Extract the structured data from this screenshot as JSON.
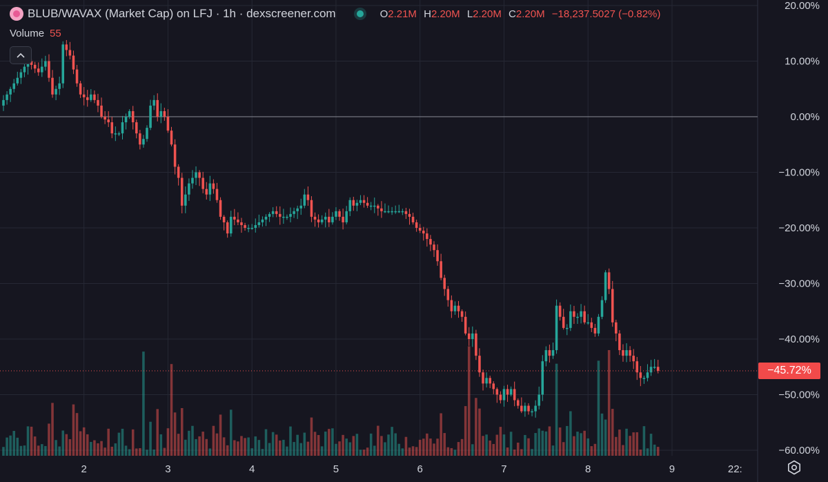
{
  "header": {
    "title": "BLUB/WAVAX (Market Cap) on LFJ · 1h · dexscreener.com",
    "ohlc": [
      {
        "k": "O",
        "v": "2.21M"
      },
      {
        "k": "H",
        "v": "2.20M"
      },
      {
        "k": "L",
        "v": "2.20M"
      },
      {
        "k": "C",
        "v": "2.20M"
      }
    ],
    "change": "−18,237.5027 (−0.82%)"
  },
  "volume_legend": {
    "label": "Volume",
    "value": "55"
  },
  "last_value_label": "−45.72%",
  "colors": {
    "up": "#26a69a",
    "down": "#ef5350",
    "background": "#161620",
    "grid": "#262834",
    "text": "#d1d4dc",
    "baseline": "#8a8c96",
    "last_line": "#ef5350"
  },
  "icons": {
    "logo": "blub-token-logo",
    "status": "live-dot-icon",
    "collapse": "chevron-up-icon",
    "settings": "gear-icon"
  },
  "chart_data": {
    "type": "candlestick",
    "y_axis": {
      "unit": "percent",
      "range": [
        -61,
        21
      ],
      "ticks": [
        20,
        10,
        0,
        -10,
        -20,
        -30,
        -40,
        -50,
        -60
      ],
      "tick_labels": [
        "20.00%",
        "10.00%",
        "0.00%",
        "−10.00%",
        "−20.00%",
        "−30.00%",
        "−40.00%",
        "−50.00%",
        "−60.00%"
      ],
      "baseline": 0,
      "last_value": -45.72
    },
    "x_axis": {
      "day_ticks": [
        {
          "label": "2",
          "hours": 0
        },
        {
          "label": "3",
          "hours": 24
        },
        {
          "label": "4",
          "hours": 48
        },
        {
          "label": "5",
          "hours": 72
        },
        {
          "label": "6",
          "hours": 96
        },
        {
          "label": "7",
          "hours": 120
        },
        {
          "label": "8",
          "hours": 144
        },
        {
          "label": "9",
          "hours": 168
        },
        {
          "label": "22:",
          "hours": 186
        }
      ],
      "range_hours": [
        -23,
        182
      ]
    },
    "close_path": [
      [
        -23,
        3
      ],
      [
        -19,
        7
      ],
      [
        -16,
        10
      ],
      [
        -13,
        8
      ],
      [
        -11,
        10
      ],
      [
        -9,
        4
      ],
      [
        -7,
        6
      ],
      [
        -6,
        13
      ],
      [
        -4,
        11
      ],
      [
        -2,
        6
      ],
      [
        -1,
        4
      ],
      [
        1,
        3
      ],
      [
        2,
        4
      ],
      [
        4,
        2
      ],
      [
        5,
        0
      ],
      [
        7,
        -1
      ],
      [
        8,
        -3
      ],
      [
        10,
        -3
      ],
      [
        11,
        -1
      ],
      [
        13,
        1
      ],
      [
        14,
        -1
      ],
      [
        16,
        -5
      ],
      [
        17,
        -4
      ],
      [
        18,
        -2
      ],
      [
        19,
        2
      ],
      [
        20,
        3
      ],
      [
        21,
        0
      ],
      [
        22,
        1
      ],
      [
        23,
        0
      ],
      [
        25,
        -5
      ],
      [
        26,
        -9
      ],
      [
        27,
        -11
      ],
      [
        28,
        -16
      ],
      [
        29,
        -14
      ],
      [
        30,
        -12
      ],
      [
        31,
        -11
      ],
      [
        32,
        -10
      ],
      [
        33,
        -11
      ],
      [
        34,
        -13
      ],
      [
        35,
        -14
      ],
      [
        36,
        -12
      ],
      [
        37,
        -13
      ],
      [
        38,
        -15
      ],
      [
        39,
        -18
      ],
      [
        40,
        -19
      ],
      [
        41,
        -21
      ],
      [
        42,
        -18
      ],
      [
        44,
        -19
      ],
      [
        46,
        -20
      ],
      [
        48,
        -20
      ],
      [
        50,
        -19
      ],
      [
        52,
        -18
      ],
      [
        54,
        -17
      ],
      [
        56,
        -18
      ],
      [
        58,
        -18
      ],
      [
        60,
        -17
      ],
      [
        62,
        -16
      ],
      [
        63,
        -14
      ],
      [
        64,
        -15
      ],
      [
        65,
        -18
      ],
      [
        67,
        -19
      ],
      [
        69,
        -18
      ],
      [
        70,
        -19
      ],
      [
        72,
        -17
      ],
      [
        74,
        -19
      ],
      [
        76,
        -15
      ],
      [
        77,
        -16
      ],
      [
        79,
        -15
      ],
      [
        81,
        -16
      ],
      [
        83,
        -16
      ],
      [
        85,
        -17
      ],
      [
        87,
        -17
      ],
      [
        89,
        -17
      ],
      [
        91,
        -17
      ],
      [
        93,
        -18
      ],
      [
        95,
        -20
      ],
      [
        97,
        -21
      ],
      [
        99,
        -23
      ],
      [
        100,
        -24
      ],
      [
        101,
        -26
      ],
      [
        102,
        -29
      ],
      [
        103,
        -31
      ],
      [
        104,
        -33
      ],
      [
        105,
        -35
      ],
      [
        106,
        -34
      ],
      [
        107,
        -35
      ],
      [
        108,
        -36
      ],
      [
        109,
        -39
      ],
      [
        110,
        -40
      ],
      [
        111,
        -39
      ],
      [
        112,
        -43
      ],
      [
        113,
        -46
      ],
      [
        114,
        -48
      ],
      [
        115,
        -47
      ],
      [
        116,
        -48
      ],
      [
        117,
        -49
      ],
      [
        118,
        -50
      ],
      [
        119,
        -51
      ],
      [
        120,
        -49
      ],
      [
        121,
        -50
      ],
      [
        122,
        -49
      ],
      [
        123,
        -51
      ],
      [
        124,
        -52
      ],
      [
        125,
        -53
      ],
      [
        126,
        -52
      ],
      [
        127,
        -53
      ],
      [
        128,
        -53
      ],
      [
        129,
        -52
      ],
      [
        130,
        -50
      ],
      [
        131,
        -44
      ],
      [
        132,
        -42
      ],
      [
        133,
        -43
      ],
      [
        134,
        -42
      ],
      [
        135,
        -34
      ],
      [
        136,
        -36
      ],
      [
        137,
        -38
      ],
      [
        138,
        -38
      ],
      [
        139,
        -35
      ],
      [
        140,
        -36
      ],
      [
        141,
        -36
      ],
      [
        142,
        -35
      ],
      [
        143,
        -37
      ],
      [
        144,
        -37
      ],
      [
        145,
        -38
      ],
      [
        146,
        -39
      ],
      [
        147,
        -36
      ],
      [
        148,
        -33
      ],
      [
        149,
        -28
      ],
      [
        150,
        -31
      ],
      [
        151,
        -37
      ],
      [
        152,
        -39
      ],
      [
        153,
        -42
      ],
      [
        154,
        -43
      ],
      [
        155,
        -42
      ],
      [
        156,
        -43
      ],
      [
        157,
        -44
      ],
      [
        158,
        -46
      ],
      [
        159,
        -47
      ],
      [
        160,
        -47
      ],
      [
        161,
        -46
      ],
      [
        162,
        -45
      ],
      [
        163,
        -45
      ],
      [
        164,
        -45.72
      ]
    ],
    "volume": {
      "max_value": 55,
      "shape": "bars per candle, spikes near hours 17, 25, 110, 135, 147, 150"
    }
  }
}
